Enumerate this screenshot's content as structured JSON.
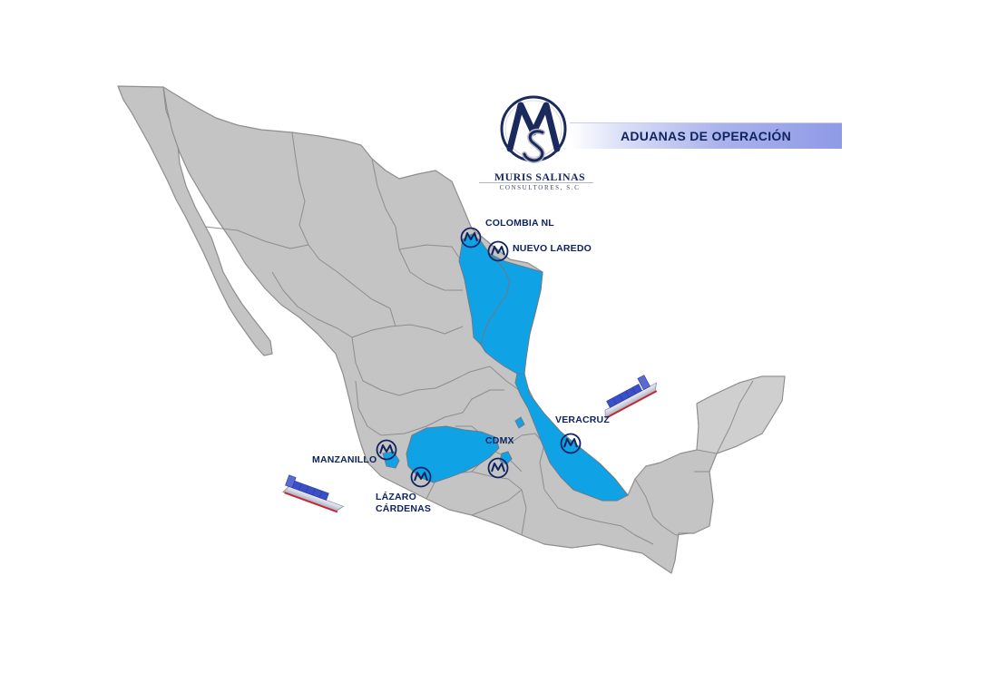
{
  "title": "ADUANAS DE OPERACIÓN",
  "brand": {
    "name": "MURIS SALINAS",
    "subtitle": "CONSULTORES, S.C"
  },
  "colors": {
    "land": "#c4c4c4",
    "border": "#8e8e8e",
    "highlight": "#0fa3e6",
    "label": "#0f2460",
    "ship_hull": "#d9dce6",
    "ship_stripe": "#c0283a",
    "containers": "#3b4fc8"
  },
  "customs_offices": [
    {
      "label": "COLOMBIA NL",
      "marker": "ms-logo-icon"
    },
    {
      "label": "NUEVO LAREDO",
      "marker": "ms-logo-icon"
    },
    {
      "label": "VERACRUZ",
      "marker": "ms-logo-icon"
    },
    {
      "label": "CDMX",
      "marker": "ms-logo-icon"
    },
    {
      "label": "MANZANILLO",
      "marker": "ms-logo-icon"
    },
    {
      "label_line1": "LÁZARO",
      "label_line2": "CÁRDENAS",
      "marker": "ms-logo-icon"
    }
  ],
  "highlighted_regions": [
    "Nuevo León",
    "Tamaulipas",
    "Veracruz",
    "Michoacán",
    "Ciudad de México"
  ],
  "ships": [
    "cargo-ship-icon",
    "cargo-ship-icon"
  ]
}
